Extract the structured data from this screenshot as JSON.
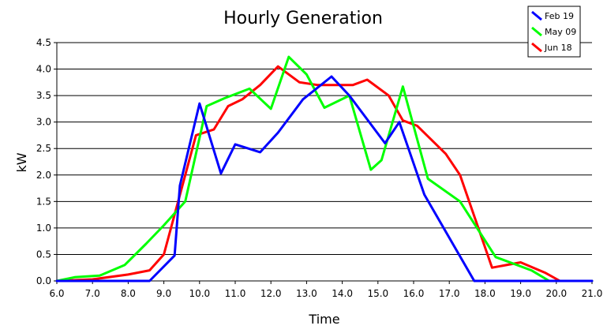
{
  "chart_data": {
    "type": "line",
    "title": "Hourly Generation",
    "xlabel": "Time",
    "ylabel": "kW",
    "xlim": [
      6.0,
      21.0
    ],
    "ylim": [
      0.0,
      4.5
    ],
    "x_ticks": [
      "6.0",
      "7.0",
      "8.0",
      "9.0",
      "10.0",
      "11.0",
      "12.0",
      "13.0",
      "14.0",
      "15.0",
      "16.0",
      "17.0",
      "18.0",
      "19.0",
      "20.0",
      "21.0"
    ],
    "y_ticks": [
      "0.0",
      "0.5",
      "1.0",
      "1.5",
      "2.0",
      "2.5",
      "3.0",
      "3.5",
      "4.0",
      "4.5"
    ],
    "grid": "horizontal",
    "legend_position": "top-right",
    "series": [
      {
        "name": "Feb 19",
        "color": "#0000ff",
        "points": [
          [
            6.0,
            0.0
          ],
          [
            8.6,
            0.0
          ],
          [
            9.3,
            0.48
          ],
          [
            9.45,
            1.8
          ],
          [
            10.0,
            3.35
          ],
          [
            10.6,
            2.03
          ],
          [
            11.0,
            2.58
          ],
          [
            11.7,
            2.43
          ],
          [
            12.2,
            2.8
          ],
          [
            12.9,
            3.43
          ],
          [
            13.7,
            3.86
          ],
          [
            14.2,
            3.5
          ],
          [
            15.2,
            2.6
          ],
          [
            15.6,
            3.0
          ],
          [
            16.3,
            1.63
          ],
          [
            17.7,
            0.0
          ],
          [
            21.0,
            0.0
          ]
        ]
      },
      {
        "name": "May 09",
        "color": "#00ff00",
        "points": [
          [
            6.0,
            0.0
          ],
          [
            6.5,
            0.07
          ],
          [
            7.2,
            0.1
          ],
          [
            7.9,
            0.3
          ],
          [
            8.5,
            0.7
          ],
          [
            9.0,
            1.05
          ],
          [
            9.6,
            1.5
          ],
          [
            10.2,
            3.3
          ],
          [
            10.7,
            3.45
          ],
          [
            11.4,
            3.63
          ],
          [
            12.0,
            3.25
          ],
          [
            12.5,
            4.23
          ],
          [
            13.0,
            3.9
          ],
          [
            13.5,
            3.27
          ],
          [
            14.2,
            3.5
          ],
          [
            14.8,
            2.1
          ],
          [
            15.1,
            2.28
          ],
          [
            15.7,
            3.67
          ],
          [
            16.4,
            1.93
          ],
          [
            17.3,
            1.5
          ],
          [
            18.3,
            0.45
          ],
          [
            19.3,
            0.2
          ],
          [
            19.8,
            0.0
          ],
          [
            21.0,
            0.0
          ]
        ]
      },
      {
        "name": "Jun 18",
        "color": "#ff0000",
        "points": [
          [
            6.0,
            0.0
          ],
          [
            7.0,
            0.03
          ],
          [
            8.0,
            0.12
          ],
          [
            8.6,
            0.2
          ],
          [
            9.0,
            0.5
          ],
          [
            9.6,
            2.0
          ],
          [
            9.9,
            2.75
          ],
          [
            10.4,
            2.86
          ],
          [
            10.8,
            3.3
          ],
          [
            11.2,
            3.43
          ],
          [
            11.7,
            3.7
          ],
          [
            12.2,
            4.05
          ],
          [
            12.8,
            3.75
          ],
          [
            13.3,
            3.7
          ],
          [
            14.3,
            3.7
          ],
          [
            14.7,
            3.8
          ],
          [
            15.3,
            3.5
          ],
          [
            15.7,
            3.03
          ],
          [
            16.1,
            2.93
          ],
          [
            16.9,
            2.4
          ],
          [
            17.3,
            2.0
          ],
          [
            18.2,
            0.25
          ],
          [
            19.0,
            0.35
          ],
          [
            19.7,
            0.15
          ],
          [
            20.1,
            0.0
          ],
          [
            21.0,
            0.0
          ]
        ]
      }
    ]
  }
}
